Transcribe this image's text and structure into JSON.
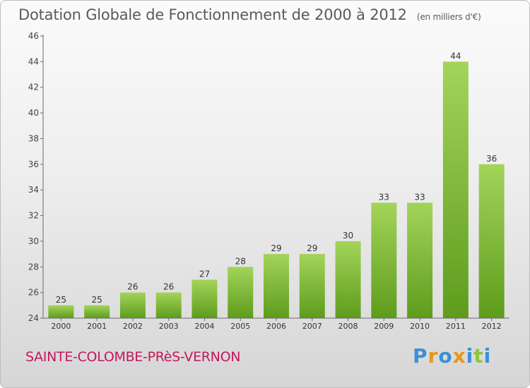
{
  "header": {
    "title": "Dotation Globale de Fonctionnement de 2000 à 2012",
    "unit": "(en milliers d'€)"
  },
  "footer": {
    "commune": "SAINTE-COLOMBE-PRèS-VERNON",
    "logo_text": "Proxiti"
  },
  "colors": {
    "bar_top": "#a3d45a",
    "bar_bottom": "#5e9c1c",
    "title": "#5a5a5a",
    "commune": "#c2185b",
    "logo_letters": [
      "#3b8fd6",
      "#e8961a",
      "#3b8fd6",
      "#e8961a",
      "#3b8fd6",
      "#8cc63f",
      "#3b8fd6"
    ]
  },
  "chart_data": {
    "type": "bar",
    "title": "Dotation Globale de Fonctionnement de 2000 à 2012",
    "subtitle": "(en milliers d'€)",
    "categories": [
      "2000",
      "2001",
      "2002",
      "2003",
      "2004",
      "2005",
      "2006",
      "2007",
      "2008",
      "2009",
      "2010",
      "2011",
      "2012"
    ],
    "values": [
      25,
      25,
      26,
      26,
      27,
      28,
      29,
      29,
      30,
      33,
      33,
      44,
      36
    ],
    "ylim": [
      24,
      46
    ],
    "yticks": [
      24,
      26,
      28,
      30,
      32,
      34,
      36,
      38,
      40,
      42,
      44,
      46
    ],
    "grid": false,
    "legend": false,
    "data_labels": true
  }
}
